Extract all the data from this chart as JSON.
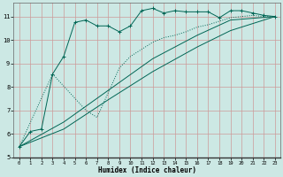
{
  "xlabel": "Humidex (Indice chaleur)",
  "bg_color": "#cce8e4",
  "grid_color": "#cc9999",
  "line_color": "#006655",
  "xlim": [
    -0.5,
    23.5
  ],
  "ylim": [
    5.0,
    11.6
  ],
  "xticks": [
    0,
    1,
    2,
    3,
    4,
    5,
    6,
    7,
    8,
    9,
    10,
    11,
    12,
    13,
    14,
    15,
    16,
    17,
    18,
    19,
    20,
    21,
    22,
    23
  ],
  "yticks": [
    5,
    6,
    7,
    8,
    9,
    10,
    11
  ],
  "line1_x": [
    0,
    1,
    2,
    3,
    4,
    5,
    6,
    7,
    8,
    9,
    10,
    11,
    12,
    13,
    14,
    15,
    16,
    17,
    18,
    19,
    20,
    21,
    22,
    23
  ],
  "line1_y": [
    5.45,
    6.1,
    6.2,
    8.55,
    9.3,
    10.75,
    10.85,
    10.6,
    10.6,
    10.35,
    10.6,
    11.25,
    11.35,
    11.15,
    11.25,
    11.2,
    11.2,
    11.2,
    10.95,
    11.25,
    11.25,
    11.15,
    11.05,
    11.0
  ],
  "line2_x": [
    0,
    3,
    6,
    7,
    9,
    10,
    11,
    12,
    13,
    14,
    15,
    16,
    17,
    18,
    19,
    20,
    21,
    22,
    23
  ],
  "line2_y": [
    5.45,
    8.55,
    7.0,
    6.7,
    8.8,
    9.3,
    9.6,
    9.9,
    10.1,
    10.2,
    10.35,
    10.55,
    10.65,
    10.8,
    10.95,
    11.0,
    11.05,
    11.0,
    11.0
  ],
  "line3_x": [
    0,
    4,
    8,
    12,
    16,
    19,
    23
  ],
  "line3_y": [
    5.45,
    6.5,
    7.85,
    9.2,
    10.2,
    10.85,
    11.0
  ],
  "line4_x": [
    0,
    4,
    8,
    12,
    16,
    19,
    23
  ],
  "line4_y": [
    5.45,
    6.2,
    7.45,
    8.65,
    9.7,
    10.4,
    11.0
  ]
}
